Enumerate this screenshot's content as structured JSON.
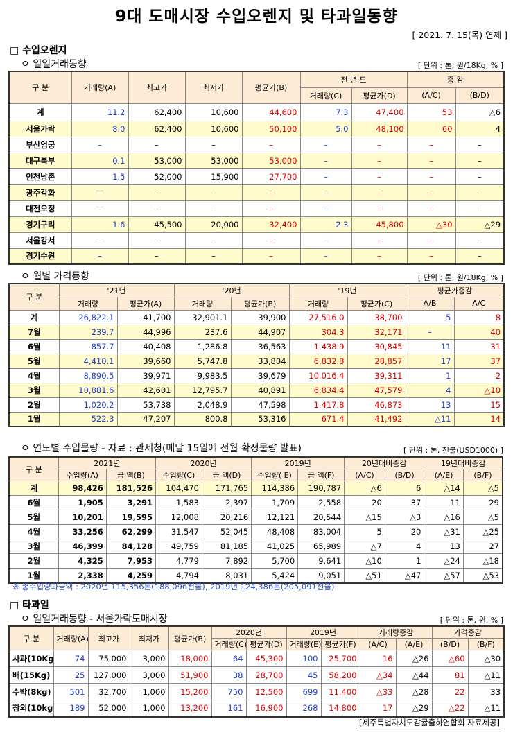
{
  "title": "9대 도매시장 수입오렌지 및 타과일동향",
  "date": "[ 2021. 7. 15(목) 연제 ]",
  "sec1": {
    "h": "□ 수입오렌지",
    "sub": "ㅇ 일일거래동향",
    "unit": "[ 단위 : 톤, 원/18Kg, % ]",
    "hdr": {
      "gubun": "구   분",
      "vol": "거래량(A)",
      "max": "최고가",
      "min": "최저가",
      "avg": "평균가(B)",
      "prev": "전 년 도",
      "pvol": "거래량(C)",
      "pavg": "평균가(D)",
      "chg": "증   감",
      "ac": "(A/C)",
      "bd": "(B/D)"
    },
    "rows": [
      [
        "계",
        "11.2",
        "62,400",
        "10,600",
        "44,600",
        "7.3",
        "47,400",
        "53",
        "△6"
      ],
      [
        "서울가락",
        "8.0",
        "62,400",
        "10,600",
        "50,100",
        "5.0",
        "48,100",
        "60",
        "4"
      ],
      [
        "부산엄궁",
        "–",
        "–",
        "–",
        "–",
        "–",
        "–",
        "–",
        "–"
      ],
      [
        "대구북부",
        "0.1",
        "53,000",
        "53,000",
        "53,000",
        "–",
        "–",
        "–",
        "–"
      ],
      [
        "인천남촌",
        "1.5",
        "52,000",
        "15,900",
        "27,700",
        "–",
        "–",
        "–",
        "–"
      ],
      [
        "광주각화",
        "–",
        "–",
        "–",
        "–",
        "–",
        "–",
        "–",
        "–"
      ],
      [
        "대전오정",
        "–",
        "–",
        "–",
        "–",
        "–",
        "–",
        "–",
        "–"
      ],
      [
        "경기구리",
        "1.6",
        "45,500",
        "20,000",
        "32,400",
        "2.3",
        "45,800",
        "△30",
        "△29"
      ],
      [
        "서울강서",
        "–",
        "–",
        "–",
        "–",
        "–",
        "–",
        "–",
        "–"
      ],
      [
        "경기수원",
        "–",
        "–",
        "–",
        "–",
        "–",
        "–",
        "–",
        "–"
      ]
    ]
  },
  "sec2": {
    "sub": "ㅇ 월별 가격동향",
    "unit": "[ 단위 : 톤, 원/18Kg, % ]",
    "hdr": {
      "gubun": "구   분",
      "y21": "'21년",
      "y20": "'20년",
      "y19": "'19년",
      "chg": "평균가증감",
      "vol": "거래량",
      "avgA": "평균가(A)",
      "avgB": "평균가(B)",
      "avgC": "평균가(C)",
      "ab": "A/B",
      "ac": "A/C"
    },
    "rows": [
      [
        "계",
        "26,822.1",
        "41,700",
        "32,901.1",
        "39,900",
        "27,516.0",
        "38,700",
        "5",
        "8"
      ],
      [
        "7월",
        "239.7",
        "44,996",
        "237.6",
        "44,907",
        "304.3",
        "32,171",
        "–",
        "40"
      ],
      [
        "6월",
        "857.7",
        "40,408",
        "1,286.8",
        "36,563",
        "1,438.9",
        "30,845",
        "11",
        "31"
      ],
      [
        "5월",
        "4,410.1",
        "39,660",
        "5,747.8",
        "33,804",
        "6,832.8",
        "28,857",
        "17",
        "37"
      ],
      [
        "4월",
        "8,890.5",
        "39,971",
        "9,983.5",
        "39,679",
        "10,016.4",
        "39,311",
        "1",
        "2"
      ],
      [
        "3월",
        "10,881.6",
        "42,601",
        "12,795.7",
        "40,891",
        "6,834.4",
        "47,579",
        "4",
        "△10"
      ],
      [
        "2월",
        "1,020.2",
        "53,738",
        "2,048.9",
        "47,598",
        "1,417.8",
        "46,873",
        "13",
        "15"
      ],
      [
        "1월",
        "522.3",
        "47,207",
        "800.8",
        "53,316",
        "671.4",
        "41,492",
        "△11",
        "14"
      ]
    ]
  },
  "sec3": {
    "sub": "ㅇ 연도별 수입물량 - 자료 : 관세청(매달 15일에 전월 확정물량 발표)",
    "unit": "[ 단위 : 톤, 천불(USD1000) ]",
    "hdr": {
      "gubun": "구 분",
      "y21": "2021년",
      "y20": "2020년",
      "y19": "2019년",
      "c20": "20년대비증감",
      "c19": "19년대비증감",
      "qa": "수입량(A)",
      "ab": "금  액(B)",
      "qc": "수입량(C)",
      "ad": "금  액(D)",
      "qe": "수입량( E)",
      "af": "금  액(F)",
      "r1": "(A/C)",
      "r2": "(B/D)",
      "r3": "(A/E)",
      "r4": "(B/F)"
    },
    "rows": [
      [
        "계",
        "98,426",
        "181,526",
        "104,470",
        "171,765",
        "114,386",
        "190,787",
        "△6",
        "6",
        "△14",
        "△5"
      ],
      [
        "6월",
        "1,905",
        "3,291",
        "1,583",
        "2,397",
        "1,709",
        "2,558",
        "20",
        "37",
        "11",
        "29"
      ],
      [
        "5월",
        "10,201",
        "19,595",
        "12,008",
        "20,216",
        "12,121",
        "20,544",
        "△15",
        "△3",
        "△16",
        "△5"
      ],
      [
        "4월",
        "33,256",
        "62,299",
        "31,547",
        "52,045",
        "48,408",
        "83,004",
        "5",
        "20",
        "△31",
        "△25"
      ],
      [
        "3월",
        "46,399",
        "84,128",
        "49,759",
        "81,185",
        "41,025",
        "65,989",
        "△7",
        "4",
        "13",
        "27"
      ],
      [
        "2월",
        "4,325",
        "7,953",
        "4,779",
        "7,892",
        "5,700",
        "9,641",
        "△10",
        "1",
        "△24",
        "△18"
      ],
      [
        "1월",
        "2,338",
        "4,259",
        "4,794",
        "8,031",
        "5,424",
        "9,051",
        "△51",
        "△47",
        "△57",
        "△53"
      ]
    ],
    "note": "※ 총수입량과금액 : 2020년 115,356톤(188,096천불),  2019년 124,386톤(205,091천불)"
  },
  "sec4": {
    "h": "□ 타과일",
    "sub": "ㅇ 일일거래동향 - 서울가락도매시장",
    "unit": "[ 단위 : 톤, 원, % ]",
    "hdr": {
      "gubun": "구  분",
      "vol": "거래량(A)",
      "max": "최고가",
      "min": "최저가",
      "avg": "평균가(B)",
      "y20": "2020년",
      "y19": "2019년",
      "vchg": "거래량증감",
      "pchg": "가격증감",
      "vc": "거래량(C)",
      "pd": "평균가(D)",
      "ve": "거래량(E)",
      "pf": "평균가(F)",
      "ac": "(A/C)",
      "ae": "(A/E)",
      "bd": "(B/D)",
      "bf": "(B/F)"
    },
    "rows": [
      [
        "사과(10Kg)",
        "74",
        "75,000",
        "3,000",
        "18,000",
        "64",
        "45,300",
        "100",
        "25,700",
        "16",
        "△26",
        "△60",
        "△30"
      ],
      [
        "배(15Kg)",
        "25",
        "127,000",
        "3,000",
        "51,900",
        "38",
        "28,700",
        "45",
        "58,200",
        "△34",
        "△44",
        "81",
        "△11"
      ],
      [
        "수박(8kg)",
        "501",
        "32,700",
        "1,000",
        "15,200",
        "750",
        "12,500",
        "699",
        "11,400",
        "△33",
        "△28",
        "22",
        "33"
      ],
      [
        "참외(10kg)",
        "189",
        "52,000",
        "1,000",
        "13,200",
        "161",
        "16,900",
        "268",
        "14,800",
        "17",
        "△29",
        "△22",
        "△11"
      ]
    ]
  },
  "source": "[제주특별자치도감귤출하연합회 자료제공]"
}
